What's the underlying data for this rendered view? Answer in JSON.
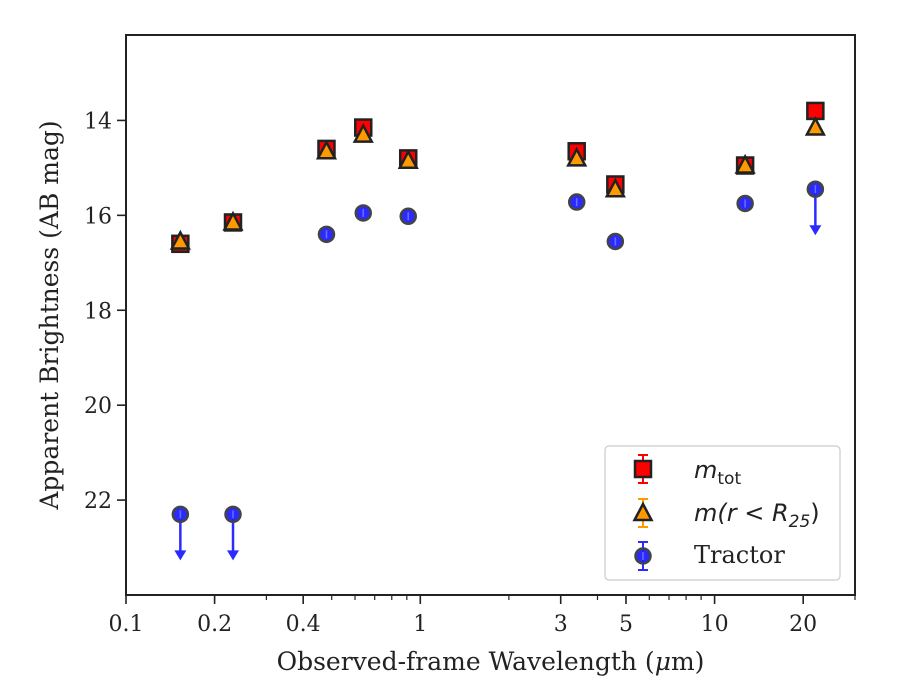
{
  "chart_data": {
    "type": "scatter",
    "xscale": "log",
    "yinverted": true,
    "xlim": [
      0.1,
      30
    ],
    "ylim": [
      24.0,
      12.2
    ],
    "xlabel_pre": "Observed-frame Wavelength (",
    "xlabel_mu": "μ",
    "xlabel_post": "m)",
    "ylabel": "Apparent Brightness (AB mag)",
    "xticks": [
      {
        "value": 0.1,
        "label": "0.1"
      },
      {
        "value": 0.2,
        "label": "0.2"
      },
      {
        "value": 0.4,
        "label": "0.4"
      },
      {
        "value": 1,
        "label": "1"
      },
      {
        "value": 3,
        "label": "3"
      },
      {
        "value": 5,
        "label": "5"
      },
      {
        "value": 10,
        "label": "10"
      },
      {
        "value": 20,
        "label": "20"
      }
    ],
    "yticks": [
      {
        "value": 14,
        "label": "14"
      },
      {
        "value": 16,
        "label": "16"
      },
      {
        "value": 18,
        "label": "18"
      },
      {
        "value": 20,
        "label": "20"
      },
      {
        "value": 22,
        "label": "22"
      }
    ],
    "legend_placement": "lower-right",
    "series": [
      {
        "key": "mtot",
        "marker": "square",
        "color": "#ff0000",
        "edge": "#222222",
        "x": [
          0.153,
          0.231,
          0.48,
          0.64,
          0.91,
          3.4,
          4.6,
          12.7,
          22.0
        ],
        "y": [
          16.6,
          16.15,
          14.6,
          14.15,
          14.8,
          14.65,
          15.35,
          14.95,
          13.8
        ]
      },
      {
        "key": "mr25",
        "marker": "triangle",
        "color": "#ff9900",
        "edge": "#222222",
        "x": [
          0.153,
          0.231,
          0.48,
          0.64,
          0.91,
          3.4,
          4.6,
          12.7,
          22.0
        ],
        "y": [
          16.55,
          16.15,
          14.65,
          14.3,
          14.85,
          14.8,
          15.45,
          14.95,
          14.15
        ]
      },
      {
        "key": "tractor",
        "marker": "circle",
        "color": "#1f1fff",
        "edge": "#444444",
        "x": [
          0.153,
          0.231,
          0.48,
          0.64,
          0.91,
          3.4,
          4.6,
          12.7,
          22.0
        ],
        "y": [
          22.3,
          22.3,
          16.4,
          15.95,
          16.02,
          15.72,
          16.55,
          15.75,
          15.45
        ],
        "upper_limits": [
          true,
          true,
          false,
          false,
          false,
          false,
          false,
          false,
          true
        ]
      }
    ],
    "legend": [
      {
        "series": "mtot",
        "base": "m",
        "sub": "tot"
      },
      {
        "series": "mr25",
        "pre": "m(r < R",
        "sub": "25",
        "post": ")"
      },
      {
        "series": "tractor",
        "text": "Tractor"
      }
    ]
  }
}
